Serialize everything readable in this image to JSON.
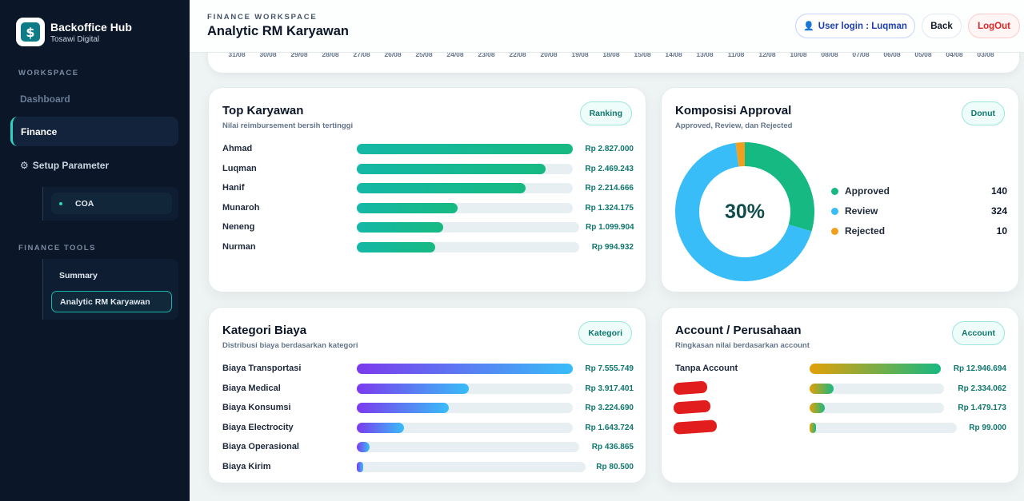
{
  "app": {
    "title": "Backoffice Hub",
    "subtitle": "Tosawi Digital",
    "logo_glyph": "$"
  },
  "sidebar": {
    "workspace_label": "WORKSPACE",
    "dashboard": "Dashboard",
    "finance": "Finance",
    "setup_parameter": "Setup Parameter",
    "coa": "COA",
    "tools_label": "FINANCE TOOLS",
    "summary": "Summary",
    "analytic": "Analytic RM Karyawan"
  },
  "header": {
    "eyebrow": "FINANCE WORKSPACE",
    "title": "Analytic RM Karyawan",
    "user_login": "User login : Luqman",
    "back": "Back",
    "logout": "LogOut"
  },
  "dates": [
    "31/08",
    "30/08",
    "29/08",
    "28/08",
    "27/08",
    "26/08",
    "25/08",
    "24/08",
    "23/08",
    "22/08",
    "20/08",
    "19/08",
    "18/08",
    "15/08",
    "14/08",
    "13/08",
    "11/08",
    "12/08",
    "10/08",
    "08/08",
    "07/08",
    "06/08",
    "05/08",
    "04/08",
    "03/08"
  ],
  "top_karyawan": {
    "title": "Top Karyawan",
    "subtitle": "Nilai reimbursement bersih tertinggi",
    "badge": "Ranking",
    "rows": [
      {
        "name": "Ahmad",
        "value": "Rp 2.827.000",
        "fraction": 1.0
      },
      {
        "name": "Luqman",
        "value": "Rp 2.469.243",
        "fraction": 0.873
      },
      {
        "name": "Hanif",
        "value": "Rp 2.214.666",
        "fraction": 0.783
      },
      {
        "name": "Munaroh",
        "value": "Rp 1.324.175",
        "fraction": 0.468
      },
      {
        "name": "Neneng",
        "value": "Rp 1.099.904",
        "fraction": 0.389
      },
      {
        "name": "Nurman",
        "value": "Rp 994.932",
        "fraction": 0.352
      }
    ]
  },
  "komposisi": {
    "title": "Komposisi Approval",
    "subtitle": "Approved, Review, dan Rejected",
    "badge": "Donut",
    "center": "30%",
    "items": [
      {
        "label": "Approved",
        "value": "140",
        "count": 140,
        "color": "#16b981"
      },
      {
        "label": "Review",
        "value": "324",
        "count": 324,
        "color": "#38bdf8"
      },
      {
        "label": "Rejected",
        "value": "10",
        "count": 10,
        "color": "#f0a01e"
      }
    ]
  },
  "kategori": {
    "title": "Kategori Biaya",
    "subtitle": "Distribusi biaya berdasarkan kategori",
    "badge": "Kategori",
    "rows": [
      {
        "name": "Biaya Transportasi",
        "value": "Rp 7.555.749",
        "fraction": 1.0
      },
      {
        "name": "Biaya Medical",
        "value": "Rp 3.917.401",
        "fraction": 0.518
      },
      {
        "name": "Biaya Konsumsi",
        "value": "Rp 3.224.690",
        "fraction": 0.427
      },
      {
        "name": "Biaya Electrocity",
        "value": "Rp 1.643.724",
        "fraction": 0.218
      },
      {
        "name": "Biaya Operasional",
        "value": "Rp 436.865",
        "fraction": 0.058
      },
      {
        "name": "Biaya Kirim",
        "value": "Rp 80.500",
        "fraction": 0.011
      }
    ]
  },
  "account": {
    "title": "Account / Perusahaan",
    "subtitle": "Ringkasan nilai berdasarkan account",
    "badge": "Account",
    "rows": [
      {
        "name": "Tanpa Account",
        "value": "Rp 12.946.694",
        "fraction": 1.0,
        "redacted": false
      },
      {
        "name": "",
        "value": "Rp 2.334.062",
        "fraction": 0.18,
        "redacted": true
      },
      {
        "name": "",
        "value": "Rp 1.479.173",
        "fraction": 0.114,
        "redacted": true
      },
      {
        "name": "",
        "value": "Rp 99.000",
        "fraction": 0.008,
        "redacted": true
      }
    ]
  }
}
